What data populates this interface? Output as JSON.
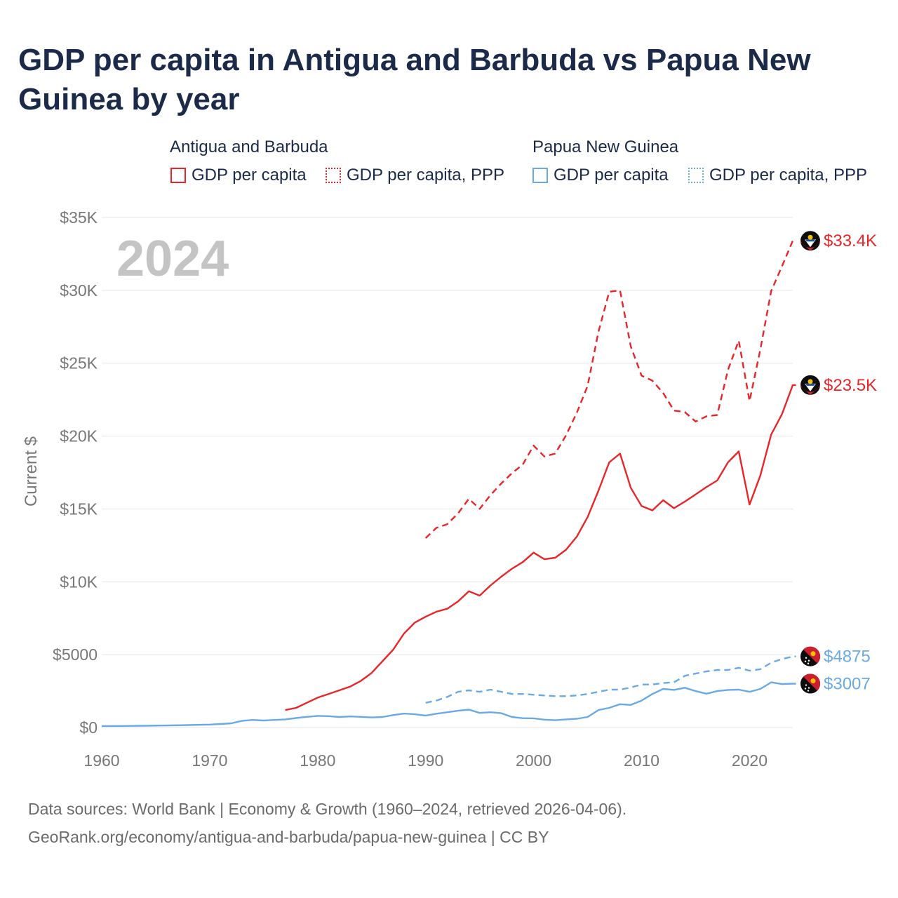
{
  "title": "GDP per capita in Antigua and Barbuda vs Papua New Guinea by year",
  "legend": {
    "groups": [
      {
        "name": "Antigua and Barbuda",
        "items": [
          "GDP per capita",
          "GDP per capita, PPP"
        ]
      },
      {
        "name": "Papua New Guinea",
        "items": [
          "GDP per capita",
          "GDP per capita, PPP"
        ]
      }
    ]
  },
  "year_label": "2024",
  "colors": {
    "antigua": "#e8262a",
    "png": "#6aaae4"
  },
  "end_labels": {
    "antigua_ppp": "$33.4K",
    "antigua_gdp": "$23.5K",
    "png_ppp": "$4875",
    "png_gdp": "$3007"
  },
  "chart_data": {
    "type": "line",
    "title": "GDP per capita in Antigua and Barbuda vs Papua New Guinea by year",
    "xlabel": "",
    "ylabel": "Current $",
    "xlim": [
      1960,
      2024
    ],
    "ylim": [
      0,
      35000
    ],
    "x_ticks": [
      1960,
      1970,
      1980,
      1990,
      2000,
      2010,
      2020
    ],
    "y_ticks": [
      0,
      5000,
      10000,
      15000,
      20000,
      25000,
      30000,
      35000
    ],
    "x_tick_labels": [
      "1960",
      "1970",
      "1980",
      "1990",
      "2000",
      "2010",
      "2020"
    ],
    "y_tick_labels": [
      "$0",
      "$5000",
      "$10K",
      "$15K",
      "$20K",
      "$25K",
      "$30K",
      "$35K"
    ],
    "series": [
      {
        "name": "Antigua and Barbuda GDP per capita",
        "key": "antigua_gdp",
        "dashed": false,
        "x": [
          1977,
          1978,
          1979,
          1980,
          1981,
          1982,
          1983,
          1984,
          1985,
          1986,
          1987,
          1988,
          1989,
          1990,
          1991,
          1992,
          1993,
          1994,
          1995,
          1996,
          1997,
          1998,
          1999,
          2000,
          2001,
          2002,
          2003,
          2004,
          2005,
          2006,
          2007,
          2008,
          2009,
          2010,
          2011,
          2012,
          2013,
          2014,
          2015,
          2016,
          2017,
          2018,
          2019,
          2020,
          2021,
          2022,
          2023,
          2024
        ],
        "values": [
          1200,
          1350,
          1700,
          2050,
          2300,
          2550,
          2800,
          3200,
          3750,
          4550,
          5350,
          6450,
          7200,
          7600,
          7950,
          8150,
          8650,
          9350,
          9050,
          9750,
          10350,
          10900,
          11350,
          12000,
          11550,
          11650,
          12200,
          13100,
          14450,
          16250,
          18200,
          18800,
          16450,
          15200,
          14900,
          15600,
          15050,
          15500,
          16000,
          16500,
          16950,
          18200,
          18950,
          15300,
          17300,
          20100,
          21500,
          23500
        ]
      },
      {
        "name": "Antigua and Barbuda GDP per capita, PPP",
        "key": "antigua_ppp",
        "dashed": true,
        "x": [
          1990,
          1991,
          1992,
          1993,
          1994,
          1995,
          1996,
          1997,
          1998,
          1999,
          2000,
          2001,
          2002,
          2003,
          2004,
          2005,
          2006,
          2007,
          2008,
          2009,
          2010,
          2011,
          2012,
          2013,
          2014,
          2015,
          2016,
          2017,
          2018,
          2019,
          2020,
          2021,
          2022,
          2023,
          2024
        ],
        "values": [
          13000,
          13700,
          13950,
          14700,
          15700,
          15000,
          15950,
          16750,
          17450,
          18050,
          19350,
          18600,
          18800,
          20050,
          21600,
          23450,
          27150,
          29900,
          30000,
          26150,
          24150,
          23800,
          22950,
          21750,
          21650,
          21000,
          21350,
          21450,
          24550,
          26550,
          22400,
          25950,
          29950,
          31650,
          33400
        ]
      },
      {
        "name": "Papua New Guinea GDP per capita",
        "key": "png_gdp",
        "dashed": false,
        "x": [
          1960,
          1962,
          1964,
          1966,
          1968,
          1970,
          1971,
          1972,
          1973,
          1974,
          1975,
          1976,
          1977,
          1978,
          1979,
          1980,
          1981,
          1982,
          1983,
          1984,
          1985,
          1986,
          1987,
          1988,
          1989,
          1990,
          1991,
          1992,
          1993,
          1994,
          1995,
          1996,
          1997,
          1998,
          1999,
          2000,
          2001,
          2002,
          2003,
          2004,
          2005,
          2006,
          2007,
          2008,
          2009,
          2010,
          2011,
          2012,
          2013,
          2014,
          2015,
          2016,
          2017,
          2018,
          2019,
          2020,
          2021,
          2022,
          2023,
          2024
        ],
        "values": [
          100,
          105,
          120,
          140,
          170,
          200,
          240,
          290,
          460,
          520,
          480,
          520,
          560,
          650,
          730,
          800,
          780,
          720,
          760,
          730,
          690,
          720,
          850,
          960,
          910,
          820,
          950,
          1050,
          1150,
          1230,
          1000,
          1050,
          980,
          720,
          640,
          630,
          540,
          500,
          560,
          600,
          720,
          1200,
          1350,
          1600,
          1550,
          1850,
          2300,
          2650,
          2580,
          2730,
          2500,
          2320,
          2500,
          2580,
          2600,
          2450,
          2650,
          3100,
          2980,
          3007
        ]
      },
      {
        "name": "Papua New Guinea GDP per capita, PPP",
        "key": "png_ppp",
        "dashed": true,
        "x": [
          1990,
          1991,
          1992,
          1993,
          1994,
          1995,
          1996,
          1997,
          1998,
          1999,
          2000,
          2001,
          2002,
          2003,
          2004,
          2005,
          2006,
          2007,
          2008,
          2009,
          2010,
          2011,
          2012,
          2013,
          2014,
          2015,
          2016,
          2017,
          2018,
          2019,
          2020,
          2021,
          2022,
          2023,
          2024
        ],
        "values": [
          1700,
          1850,
          2100,
          2450,
          2550,
          2450,
          2600,
          2450,
          2300,
          2300,
          2250,
          2200,
          2150,
          2150,
          2200,
          2300,
          2450,
          2600,
          2600,
          2750,
          2950,
          2950,
          3050,
          3100,
          3550,
          3700,
          3850,
          3950,
          3950,
          4100,
          3900,
          4000,
          4450,
          4700,
          4875
        ]
      }
    ]
  },
  "sources": {
    "line1": "Data sources: World Bank | Economy & Growth (1960–2024, retrieved 2026-04-06).",
    "line2": "GeoRank.org/economy/antigua-and-barbuda/papua-new-guinea | CC BY"
  }
}
